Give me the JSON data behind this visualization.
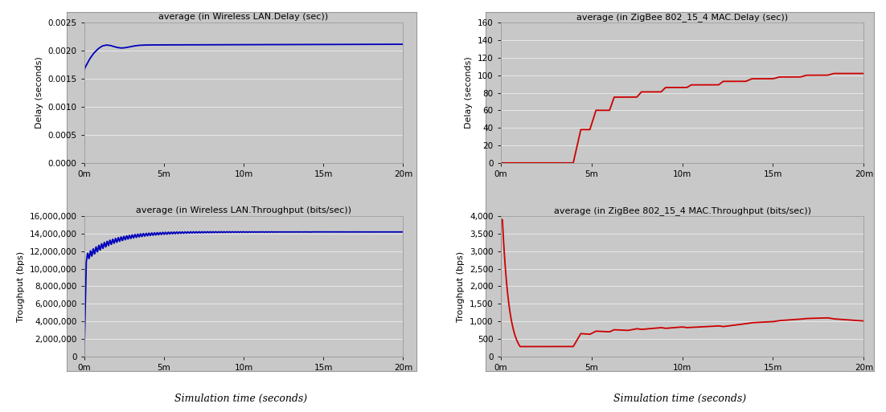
{
  "wlan_delay_title": "average (in Wireless LAN.Delay (sec))",
  "wlan_throughput_title": "average (in Wireless LAN.Throughput (bits/sec))",
  "zigbee_delay_title": "average (in ZigBee 802_15_4 MAC.Delay (sec))",
  "zigbee_throughput_title": "average (in ZigBee 802_15_4 MAC.Throughput (bits/sec))",
  "xlabel": "Simulation time (seconds)",
  "wlan_ylabel_delay": "Delay (seconds)",
  "wlan_ylabel_throughput": "Troughput (bps)",
  "zigbee_ylabel_delay": "Delay (seconds)",
  "zigbee_ylabel_throughput": "Troughput (bps)",
  "x_ticks": [
    0,
    300,
    600,
    900,
    1200
  ],
  "x_tick_labels": [
    "0m",
    "5m",
    "10m",
    "15m",
    "20m"
  ],
  "x_max": 1200,
  "wlan_delay_ylim": [
    0,
    0.0025
  ],
  "wlan_delay_yticks": [
    0.0,
    0.0005,
    0.001,
    0.0015,
    0.002,
    0.0025
  ],
  "wlan_throughput_ylim": [
    0,
    16000000
  ],
  "wlan_throughput_yticks": [
    0,
    2000000,
    4000000,
    6000000,
    8000000,
    10000000,
    12000000,
    14000000,
    16000000
  ],
  "zigbee_delay_ylim": [
    0,
    160
  ],
  "zigbee_delay_yticks": [
    0,
    20,
    40,
    60,
    80,
    100,
    120,
    140,
    160
  ],
  "zigbee_throughput_ylim": [
    0,
    4000
  ],
  "zigbee_throughput_yticks": [
    0,
    500,
    1000,
    1500,
    2000,
    2500,
    3000,
    3500,
    4000
  ],
  "line_color_wlan": "#0000bb",
  "line_color_zigbee": "#cc0000",
  "fig_bg_color": "#ffffff",
  "outer_bg_color": "#c8c8c8",
  "plot_bg_color": "#c8c8c8",
  "grid_color": "#e8e8e8",
  "title_fontsize": 8,
  "label_fontsize": 8,
  "tick_fontsize": 7.5,
  "xlabel_fontsize": 9,
  "line_width": 1.3
}
